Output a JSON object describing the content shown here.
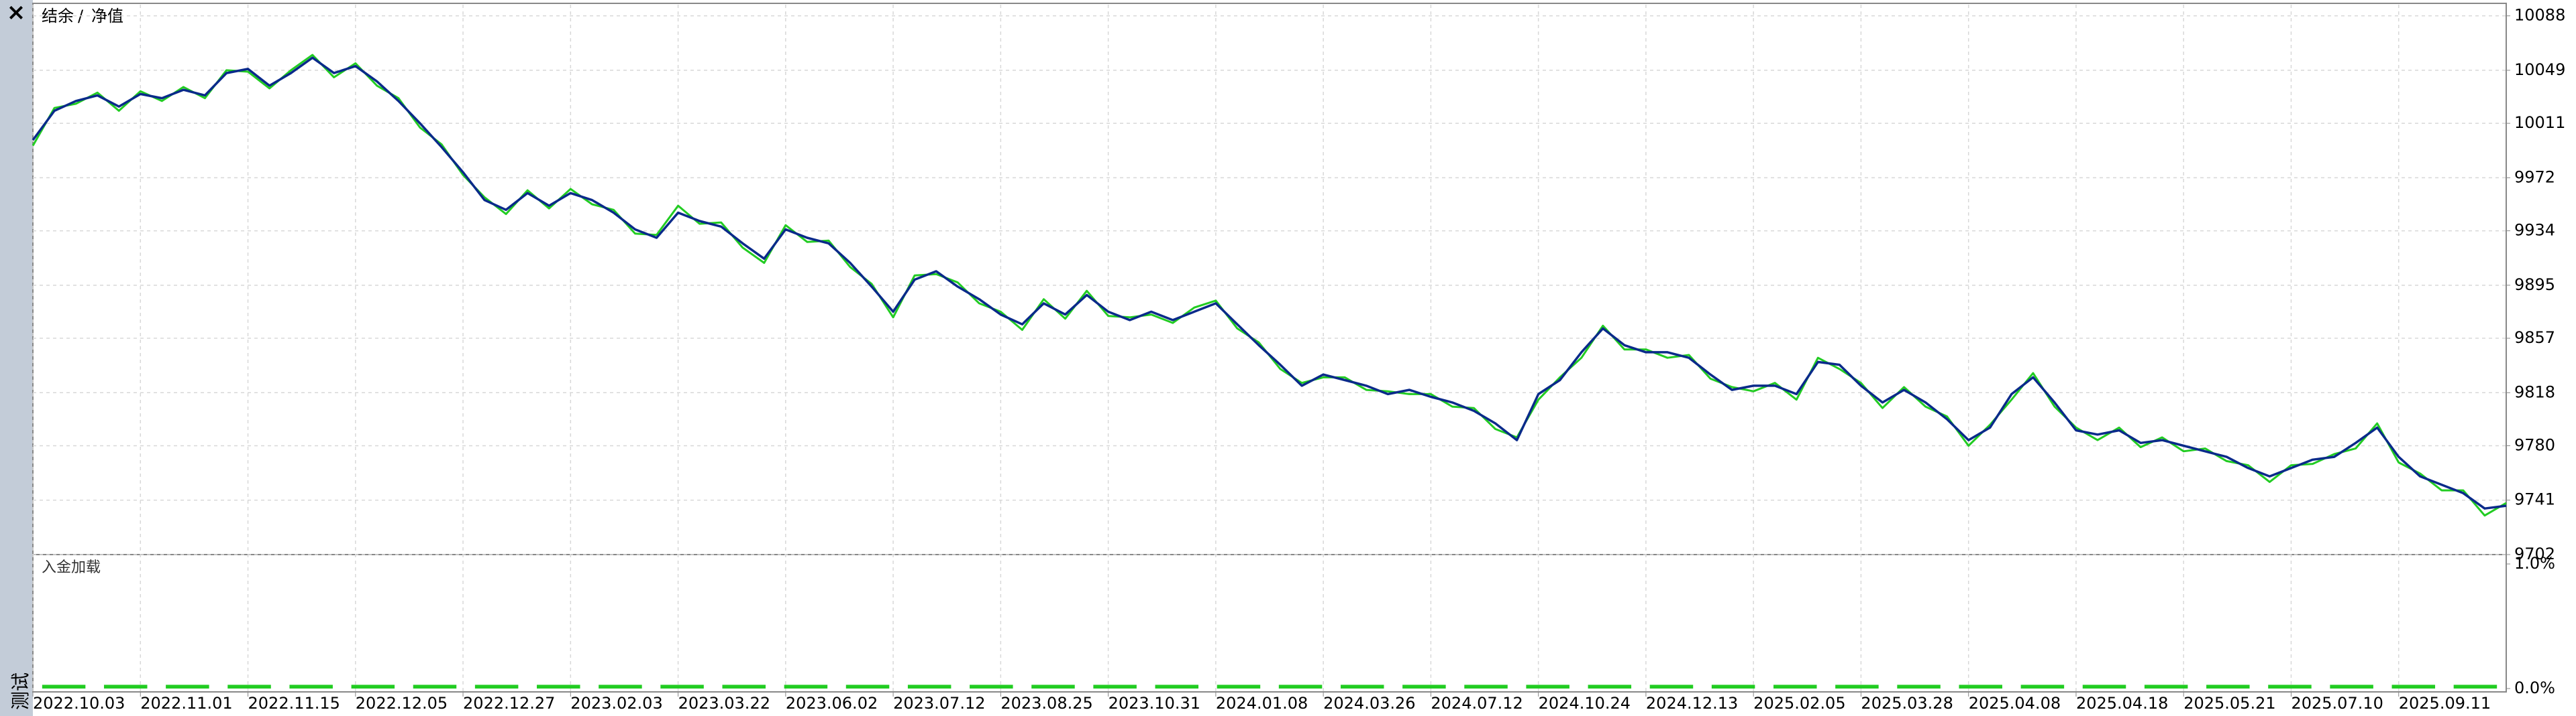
{
  "ui": {
    "close": "×",
    "side_label": "测试"
  },
  "chart_data": [
    {
      "type": "line",
      "legend_separator": "/",
      "series": [
        {
          "name": "净值",
          "color": "#22cc22",
          "values": [
            9995,
            10022,
            10025,
            10033,
            10020,
            10034,
            10027,
            10037,
            10029,
            10049,
            10048,
            10036,
            10049,
            10060,
            10044,
            10054,
            10038,
            10029,
            10008,
            9996,
            9974,
            9958,
            9946,
            9963,
            9950,
            9964,
            9953,
            9949,
            9932,
            9931,
            9952,
            9939,
            9940,
            9922,
            9911,
            9938,
            9926,
            9927,
            9908,
            9896,
            9872,
            9902,
            9903,
            9897,
            9882,
            9876,
            9863,
            9885,
            9871,
            9891,
            9873,
            9872,
            9874,
            9868,
            9879,
            9884,
            9864,
            9854,
            9835,
            9825,
            9829,
            9829,
            9820,
            9819,
            9817,
            9817,
            9808,
            9807,
            9792,
            9786,
            9813,
            9829,
            9843,
            9866,
            9849,
            9849,
            9843,
            9845,
            9828,
            9822,
            9819,
            9825,
            9813,
            9843,
            9835,
            9825,
            9807,
            9822,
            9808,
            9801,
            9780,
            9795,
            9813,
            9832,
            9808,
            9793,
            9784,
            9793,
            9779,
            9786,
            9776,
            9778,
            9769,
            9766,
            9754,
            9766,
            9767,
            9774,
            9778,
            9796,
            9768,
            9760,
            9748,
            9748,
            9730,
            9739
          ]
        },
        {
          "name": "结余",
          "color": "#0a2a8a",
          "values": [
            9999,
            10020,
            10027,
            10031,
            10023,
            10032,
            10029,
            10035,
            10031,
            10047,
            10050,
            10038,
            10047,
            10058,
            10047,
            10052,
            10041,
            10027,
            10011,
            9994,
            9976,
            9956,
            9949,
            9961,
            9952,
            9961,
            9956,
            9947,
            9935,
            9929,
            9947,
            9941,
            9937,
            9925,
            9914,
            9935,
            9929,
            9925,
            9911,
            9894,
            9876,
            9899,
            9905,
            9894,
            9885,
            9874,
            9867,
            9882,
            9874,
            9888,
            9876,
            9870,
            9876,
            9870,
            9876,
            9882,
            9867,
            9852,
            9838,
            9823,
            9831,
            9827,
            9823,
            9817,
            9820,
            9815,
            9811,
            9805,
            9796,
            9784,
            9817,
            9827,
            9847,
            9864,
            9852,
            9847,
            9847,
            9843,
            9831,
            9820,
            9823,
            9823,
            9817,
            9840,
            9838,
            9823,
            9811,
            9820,
            9811,
            9799,
            9784,
            9793,
            9817,
            9829,
            9811,
            9791,
            9788,
            9791,
            9782,
            9784,
            9780,
            9776,
            9772,
            9764,
            9758,
            9764,
            9770,
            9772,
            9782,
            9793,
            9772,
            9758,
            9752,
            9746,
            9735,
            9737
          ]
        }
      ],
      "xlim": [
        0,
        115
      ],
      "xticks": [
        {
          "value": 0,
          "label": "2022.10.03"
        },
        {
          "value": 5,
          "label": "2022.11.01"
        },
        {
          "value": 10,
          "label": "2022.11.15"
        },
        {
          "value": 15,
          "label": "2022.12.05"
        },
        {
          "value": 20,
          "label": "2022.12.27"
        },
        {
          "value": 25,
          "label": "2023.02.03"
        },
        {
          "value": 30,
          "label": "2023.03.22"
        },
        {
          "value": 35,
          "label": "2023.06.02"
        },
        {
          "value": 40,
          "label": "2023.07.12"
        },
        {
          "value": 45,
          "label": "2023.08.25"
        },
        {
          "value": 50,
          "label": "2023.10.31"
        },
        {
          "value": 55,
          "label": "2024.01.08"
        },
        {
          "value": 60,
          "label": "2024.03.26"
        },
        {
          "value": 65,
          "label": "2024.07.12"
        },
        {
          "value": 70,
          "label": "2024.10.24"
        },
        {
          "value": 75,
          "label": "2024.12.13"
        },
        {
          "value": 80,
          "label": "2025.02.05"
        },
        {
          "value": 85,
          "label": "2025.03.28"
        },
        {
          "value": 90,
          "label": "2025.04.08"
        },
        {
          "value": 95,
          "label": "2025.04.18"
        },
        {
          "value": 100,
          "label": "2025.05.21"
        },
        {
          "value": 105,
          "label": "2025.07.10"
        },
        {
          "value": 110,
          "label": "2025.09.11"
        }
      ],
      "ylim": [
        9702,
        10096
      ],
      "yticks": [
        9702,
        9741,
        9780,
        9818,
        9857,
        9895,
        9934,
        9972,
        10011,
        10049,
        10088
      ],
      "grid": true
    },
    {
      "type": "bar",
      "title": "入金加载",
      "color": "#22cc22",
      "values": [
        0.03,
        0.03,
        0.03,
        0.03,
        0.03,
        0.03,
        0.03,
        0.03,
        0.03,
        0.03,
        0.03,
        0.03,
        0.03,
        0.03,
        0.03,
        0.03,
        0.03,
        0.03,
        0.03,
        0.03,
        0.03,
        0.03,
        0.03,
        0.03,
        0.03,
        0.03,
        0.03,
        0.03,
        0.03,
        0.03,
        0.03,
        0.03,
        0.03,
        0.03,
        0.03,
        0.03,
        0.03,
        0.03,
        0.03,
        0.03
      ],
      "ylim": [
        0,
        1
      ],
      "yticks": [
        {
          "value": 0,
          "label": "0.0%"
        },
        {
          "value": 1,
          "label": "1.0%"
        }
      ]
    }
  ]
}
